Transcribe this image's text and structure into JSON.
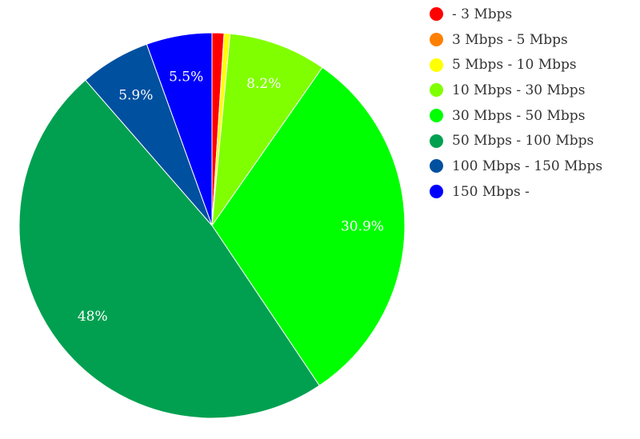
{
  "chart_data": {
    "type": "pie",
    "slices": [
      {
        "name": "- 3 Mbps",
        "value": 1.0,
        "color": "#ff0000",
        "label": ""
      },
      {
        "name": "3 Mbps - 5 Mbps",
        "value": 0.0,
        "color": "#ff8000",
        "label": ""
      },
      {
        "name": "5 Mbps - 10 Mbps",
        "value": 0.5,
        "color": "#ffff00",
        "label": ""
      },
      {
        "name": "10 Mbps - 30 Mbps",
        "value": 8.2,
        "color": "#80ff00",
        "label": "8.2%"
      },
      {
        "name": "30 Mbps - 50 Mbps",
        "value": 30.9,
        "color": "#00ff00",
        "label": "30.9%"
      },
      {
        "name": "50 Mbps - 100 Mbps",
        "value": 48,
        "color": "#00a050",
        "label": "48%"
      },
      {
        "name": "100 Mbps - 150 Mbps",
        "value": 5.9,
        "color": "#0050a0",
        "label": "5.9%"
      },
      {
        "name": "150 Mbps -",
        "value": 5.5,
        "color": "#0000ff",
        "label": "5.5%"
      }
    ],
    "legend_position": "top-right",
    "start_angle": "12 o'clock",
    "direction": "clockwise"
  }
}
